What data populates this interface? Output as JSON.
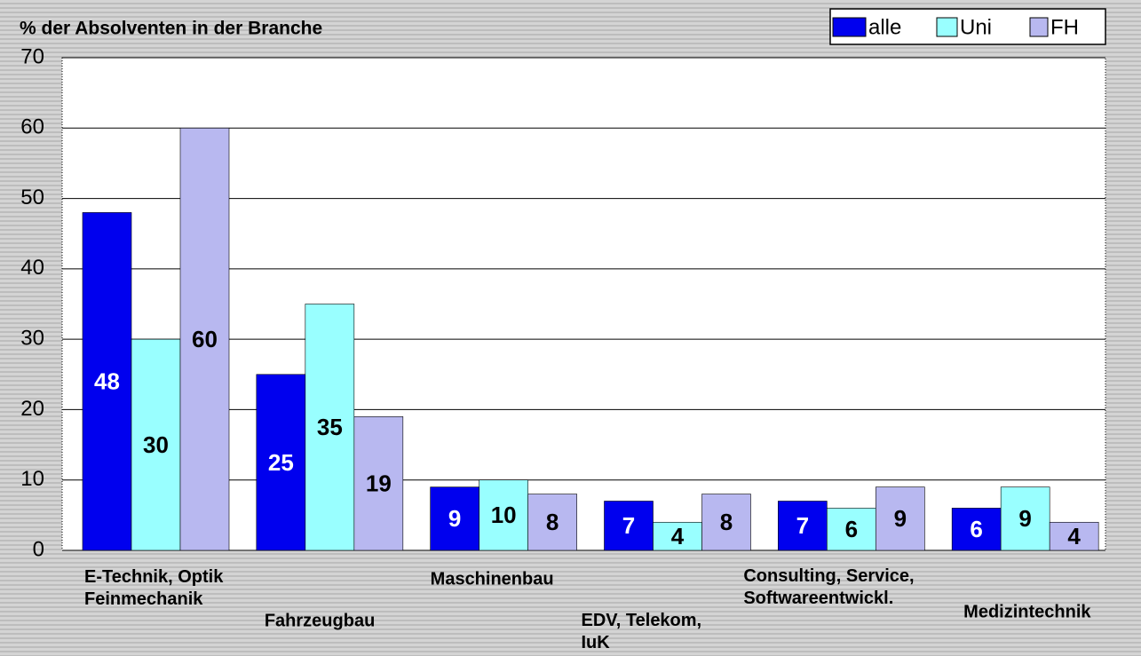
{
  "chart_data": {
    "type": "bar",
    "title": "% der Absolventen in der Branche",
    "categories": [
      "E-Technik, Optik\nFeinmechanik",
      "Fahrzeugbau",
      "Maschinenbau",
      "EDV, Telekom,\nIuK",
      "Consulting, Service,\nSoftwareentwickl.",
      "Medizintechnik"
    ],
    "series": [
      {
        "name": "alle",
        "color": "#0000ee",
        "label_color": "#ffffff",
        "values": [
          48,
          25,
          9,
          7,
          7,
          6
        ]
      },
      {
        "name": "Uni",
        "color": "#99ffff",
        "label_color": "#000000",
        "values": [
          30,
          35,
          10,
          4,
          6,
          9
        ]
      },
      {
        "name": "FH",
        "color": "#b8b8f0",
        "label_color": "#000000",
        "values": [
          60,
          19,
          8,
          8,
          9,
          4
        ]
      }
    ],
    "ylim": [
      0,
      70
    ],
    "yticks": [
      0,
      10,
      20,
      30,
      40,
      50,
      60,
      70
    ],
    "grid": true,
    "legend": "top-right"
  }
}
